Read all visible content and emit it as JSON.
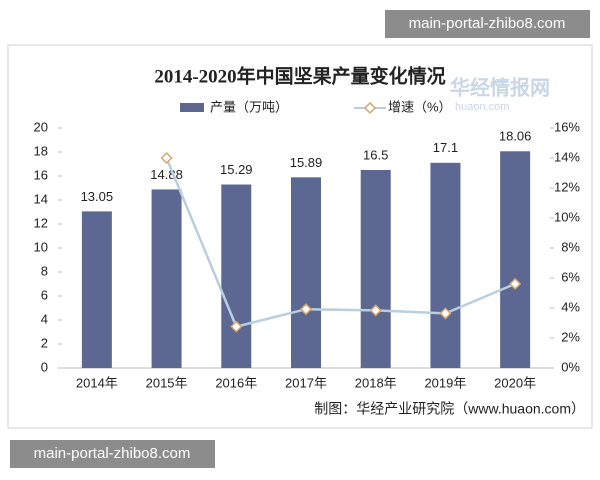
{
  "chart_data": {
    "type": "bar-line",
    "title": "2014-2020年中国坚果产量变化情况",
    "categories": [
      "2014年",
      "2015年",
      "2016年",
      "2017年",
      "2018年",
      "2019年",
      "2020年"
    ],
    "series": [
      {
        "name": "产量（万吨）",
        "type": "bar",
        "color": "#5d6892",
        "values": [
          13.05,
          14.88,
          15.29,
          15.89,
          16.5,
          17.1,
          18.06
        ]
      },
      {
        "name": "增速（%）",
        "type": "line",
        "axis": "y2",
        "color": "#b7cfe0",
        "marker_color": "#d9a56a",
        "values": [
          null,
          14,
          2.76,
          3.92,
          3.84,
          3.64,
          5.61
        ]
      }
    ],
    "ylim": [
      0,
      20
    ],
    "yticks": [
      0,
      2,
      4,
      6,
      8,
      10,
      12,
      14,
      16,
      18,
      20
    ],
    "y2lim": [
      0,
      16
    ],
    "y2ticks": [
      {
        "value": 0,
        "label": "0%"
      },
      {
        "value": 2,
        "label": "2%"
      },
      {
        "value": 4,
        "label": "4%"
      },
      {
        "value": 6,
        "label": "6%"
      },
      {
        "value": 8,
        "label": "8%"
      },
      {
        "value": 10,
        "label": "10%"
      },
      {
        "value": 12,
        "label": "12%"
      },
      {
        "value": 14,
        "label": "14%"
      },
      {
        "value": 16,
        "label": "16%"
      }
    ],
    "grid": false,
    "legend": "top",
    "source": "制图：华经产业研究院（www.huaon.com）"
  },
  "logo": {
    "name": "华经情报网",
    "url": "huaon.com"
  },
  "watermarks": {
    "top": "main-portal-zhibo8.com",
    "bottom": "main-portal-zhibo8.com"
  }
}
